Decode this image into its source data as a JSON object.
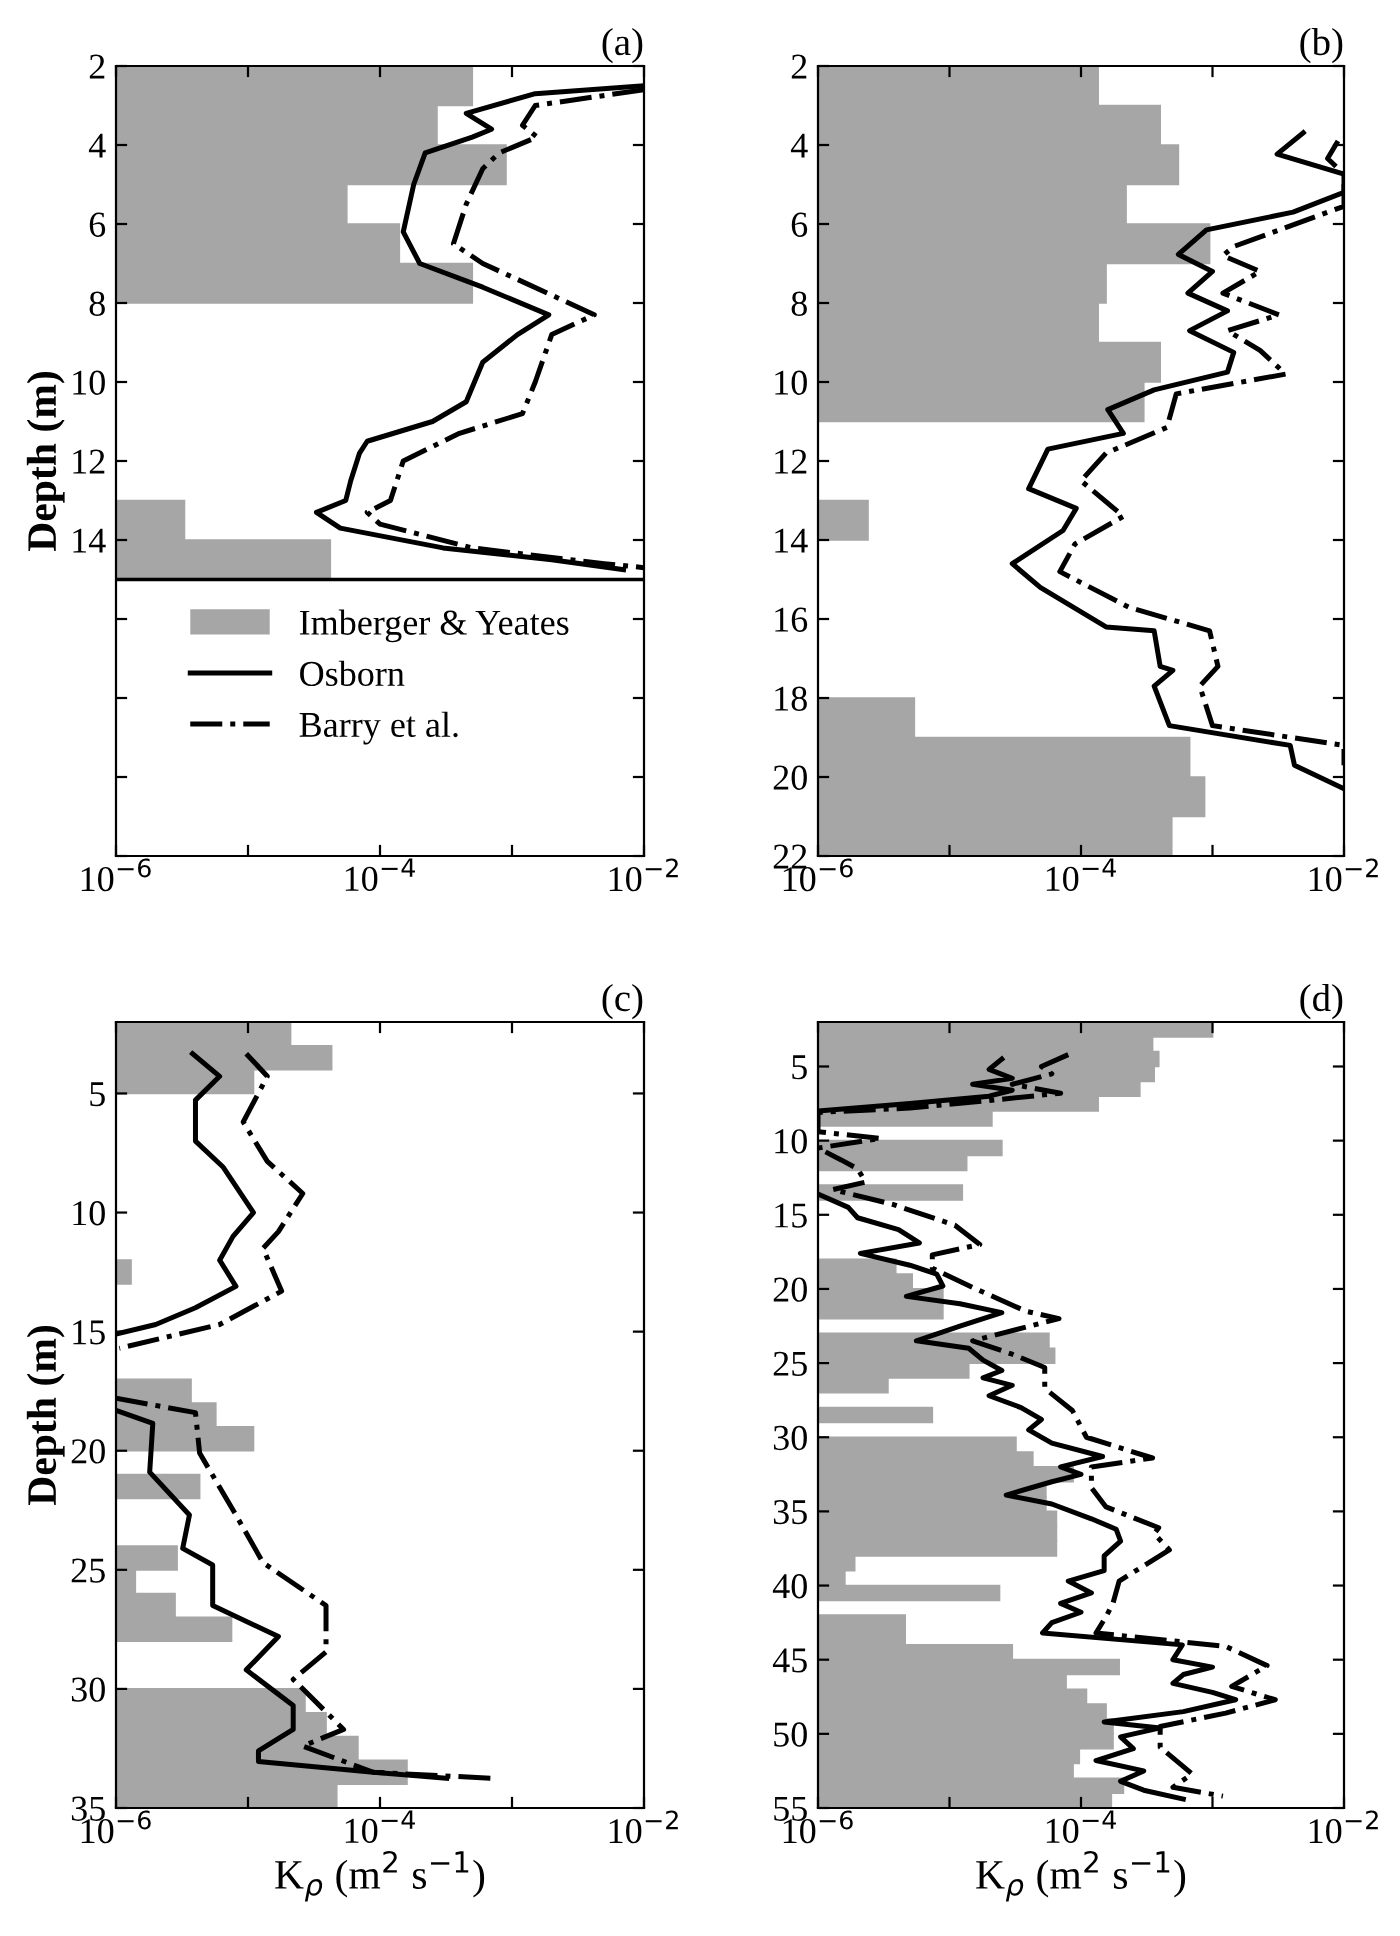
{
  "chart_data": [
    {
      "type": "histogram",
      "orientation": "horizontal",
      "title": "(a)",
      "ylabel": "Depth (m)",
      "log": "x",
      "legend": "bottom",
      "xlim": [
        1e-06,
        0.01
      ],
      "xticks": [
        {
          "value": 1e-06,
          "label": "10$^{−6}$"
        },
        {
          "value": 1e-05,
          "label": null
        },
        {
          "value": 0.0001,
          "label": "10$^{−4}$"
        },
        {
          "value": 0.001,
          "label": null
        },
        {
          "value": 0.01,
          "label": "10$^{−2}$"
        }
      ],
      "ylim": [
        22,
        2
      ],
      "yticks": [
        2,
        4,
        6,
        8,
        10,
        12,
        14,
        {
          "value": 16,
          "label": null
        },
        {
          "value": 18,
          "label": null
        },
        {
          "value": 20,
          "label": null
        },
        {
          "value": 22,
          "label": null
        }
      ],
      "ref_lines": [
        {
          "axis": "y",
          "value": 15,
          "color": "#000000"
        }
      ],
      "series": [
        {
          "name": "Imberger & Yeates",
          "color": "#a6a6a6",
          "bins": [
            2,
            3,
            4,
            5,
            6,
            7,
            8,
            9,
            10,
            11,
            12,
            13,
            14,
            15
          ],
          "values": [
            0.0005,
            0.00027,
            0.0009,
            5.6e-05,
            0.00014,
            0.0005,
            null,
            null,
            null,
            null,
            null,
            3.3e-06,
            4.2e-05
          ]
        },
        {
          "type": "line",
          "name": "Osborn",
          "color": "#000000",
          "line_style": "solid",
          "x": [
            2.5,
            2.7,
            3.2,
            3.6,
            3.8,
            4.2,
            5.0,
            6.2,
            7.0,
            7.6,
            8.3,
            8.8,
            9.5,
            10.5,
            11.0,
            11.5,
            11.8,
            12.5,
            13.0,
            13.3,
            13.7,
            14.2,
            14.5,
            14.75
          ],
          "values": [
            0.01,
            0.0015,
            0.00045,
            0.0007,
            0.0005,
            0.00022,
            0.00018,
            0.00015,
            0.0002,
            0.0006,
            0.0019,
            0.0011,
            0.0006,
            0.00045,
            0.00025,
            8e-05,
            7e-05,
            6e-05,
            5.5e-05,
            3.3e-05,
            5e-05,
            0.0003,
            0.002,
            0.007
          ]
        },
        {
          "type": "line",
          "name": "Barry et al.",
          "color": "#000000",
          "line_style": "dashdot",
          "x": [
            2.6,
            3.0,
            3.5,
            3.8,
            4.2,
            4.6,
            5.5,
            6.5,
            7.0,
            7.8,
            8.3,
            8.8,
            10.0,
            10.8,
            11.3,
            12.0,
            13.0,
            13.3,
            13.6,
            14.2,
            14.6,
            14.7
          ],
          "values": [
            0.01,
            0.0015,
            0.0012,
            0.00155,
            0.0008,
            0.0006,
            0.00045,
            0.00036,
            0.0006,
            0.002,
            0.0042,
            0.002,
            0.0015,
            0.0012,
            0.0004,
            0.00015,
            0.00012,
            8e-05,
            0.0001,
            0.0005,
            0.005,
            0.01
          ]
        }
      ]
    },
    {
      "type": "histogram",
      "orientation": "horizontal",
      "title": "(b)",
      "log": "x",
      "xlim": [
        1e-06,
        0.01
      ],
      "xticks": [
        {
          "value": 1e-06,
          "label": "10$^{−6}$"
        },
        {
          "value": 1e-05,
          "label": null
        },
        {
          "value": 0.0001,
          "label": "10$^{−4}$"
        },
        {
          "value": 0.001,
          "label": null
        },
        {
          "value": 0.01,
          "label": "10$^{−2}$"
        }
      ],
      "ylim": [
        22,
        2
      ],
      "yticks": [
        2,
        4,
        6,
        8,
        10,
        12,
        14,
        16,
        18,
        20,
        22
      ],
      "series": [
        {
          "color": "#a6a6a6",
          "bins": [
            2,
            3,
            4,
            5,
            6,
            7,
            8,
            9,
            10,
            11,
            12,
            13,
            14,
            15,
            16,
            17,
            18,
            19,
            20,
            21,
            22
          ],
          "values": [
            0.000135,
            0.0004,
            0.00055,
            0.00022,
            0.00095,
            0.000155,
            0.000135,
            0.0004,
            0.0003,
            null,
            null,
            2.4e-06,
            null,
            null,
            null,
            null,
            5.4e-06,
            0.00067,
            0.00087,
            0.00049
          ]
        },
        {
          "type": "line",
          "color": "#000000",
          "line_style": "solid",
          "x": [
            3.69,
            4.23,
            4.74,
            5.2,
            5.7,
            6.15,
            6.77,
            7.2,
            7.75,
            8.2,
            8.7,
            9.25,
            9.75,
            10.2,
            10.7,
            11.3,
            11.7,
            12.7,
            13.2,
            13.76,
            14.6,
            15.2,
            16.2,
            16.3,
            17.2,
            17.3,
            17.7,
            18.7,
            19.2,
            19.7,
            20.3
          ],
          "values": [
            0.0049,
            0.0031,
            0.01,
            0.01,
            0.0041,
            0.0009,
            0.00055,
            0.001,
            0.00065,
            0.0013,
            0.00067,
            0.00145,
            0.0013,
            0.00036,
            0.00016,
            0.00021,
            5.6e-05,
            4e-05,
            9.2e-05,
            7.3e-05,
            3e-05,
            4.9e-05,
            0.000155,
            0.00036,
            0.0004,
            0.0005,
            0.00036,
            0.00047,
            0.0039,
            0.0042,
            0.01
          ]
        },
        {
          "type": "line",
          "color": "#000000",
          "line_style": "dashdot",
          "x": [
            3.9,
            4.34,
            4.74,
            5.55,
            6.57,
            6.8,
            7.2,
            7.75,
            8.3,
            8.7,
            9.2,
            9.8,
            10.3,
            11.15,
            11.8,
            12.5,
            13.4,
            14.1,
            14.8,
            15.7,
            16.3,
            17.2,
            17.7,
            18.7,
            19.2,
            19.7
          ],
          "values": [
            0.009,
            0.0075,
            0.01,
            0.01,
            0.00145,
            0.0012,
            0.0023,
            0.0012,
            0.0032,
            0.0013,
            0.0023,
            0.0036,
            0.00053,
            0.00045,
            0.000155,
            0.0001,
            0.00021,
            9e-05,
            6.9e-05,
            0.00023,
            0.00095,
            0.0011,
            0.0008,
            0.001,
            0.01,
            0.01
          ]
        }
      ]
    },
    {
      "type": "histogram",
      "orientation": "horizontal",
      "title": "(c)",
      "ylabel": "Depth (m)",
      "xlabel": "K$_{ρ}$ (m$^{2}$ s$^{−1}$)",
      "log": "x",
      "xlim": [
        1e-06,
        0.01
      ],
      "xticks": [
        {
          "value": 1e-06,
          "label": "10$^{−6}$"
        },
        {
          "value": 1e-05,
          "label": null
        },
        {
          "value": 0.0001,
          "label": "10$^{−4}$"
        },
        {
          "value": 0.001,
          "label": null
        },
        {
          "value": 0.01,
          "label": "10$^{−2}$"
        }
      ],
      "ylim": [
        35,
        2
      ],
      "yticks": [
        5,
        10,
        15,
        20,
        25,
        30,
        35
      ],
      "series": [
        {
          "color": "#a6a6a6",
          "bins": [
            2,
            3,
            4,
            5,
            6,
            7,
            8,
            9,
            10,
            11,
            12,
            13,
            14,
            15,
            16,
            17,
            18,
            19,
            20,
            21,
            22,
            23,
            24,
            25,
            26,
            27,
            28,
            29,
            30,
            31,
            32,
            33,
            34,
            35
          ],
          "values": [
            2.1e-05,
            4.3e-05,
            1.1e-05,
            null,
            null,
            null,
            null,
            null,
            null,
            null,
            1.3e-06,
            null,
            null,
            null,
            null,
            3.7e-06,
            5.7e-06,
            1.1e-05,
            null,
            4.3e-06,
            null,
            null,
            2.9e-06,
            1.4e-06,
            2.8e-06,
            7.5e-06,
            null,
            null,
            2.7e-05,
            3.9e-05,
            6.8e-05,
            0.00016,
            4.7e-05
          ]
        },
        {
          "type": "line",
          "color": "#000000",
          "line_style": "solid",
          "x": [
            3.33,
            4.28,
            5.28,
            7.0,
            8.1,
            10.0,
            11.0,
            12.0,
            13.1,
            14.0,
            14.7,
            15.1,
            16.5,
            18.3,
            18.85,
            20.9,
            22.7,
            24.1,
            24.8,
            26.5,
            27.8,
            29.2,
            30.7,
            31.7,
            32.6,
            33.05,
            33.5,
            33.75
          ],
          "values": [
            3.8e-06,
            6.1e-06,
            4e-06,
            4e-06,
            6.5e-06,
            1.1e-05,
            7.7e-06,
            6.1e-06,
            8.1e-06,
            4e-06,
            2e-06,
            1e-06,
            null,
            1e-06,
            1.9e-06,
            1.8e-06,
            3.6e-06,
            3.2e-06,
            5.4e-06,
            5.4e-06,
            1.7e-05,
            9.7e-06,
            2.2e-05,
            2.2e-05,
            1.2e-05,
            1.2e-05,
            8.9e-05,
            0.00032
          ]
        },
        {
          "type": "line",
          "color": "#000000",
          "line_style": "dashdot",
          "x": [
            3.33,
            4.28,
            6.2,
            7.85,
            9.2,
            10.8,
            11.5,
            13.3,
            14.7,
            15.7,
            16.8,
            17.8,
            18.4,
            20.1,
            22.7,
            24.7,
            26.5,
            28.45,
            29.6,
            31.7,
            32.4,
            33.5,
            33.75
          ],
          "values": [
            9.7e-06,
            1.4e-05,
            9.2e-06,
            1.4e-05,
            2.6e-05,
            1.7e-05,
            1.3e-05,
            1.8e-05,
            6.1e-06,
            1.06e-06,
            null,
            1e-06,
            4e-06,
            4.3e-06,
            8.1e-06,
            1.3e-05,
            3.9e-05,
            3.9e-05,
            2.2e-05,
            5.3e-05,
            2.6e-05,
            8.9e-05,
            0.00069
          ]
        }
      ]
    },
    {
      "type": "histogram",
      "orientation": "horizontal",
      "title": "(d)",
      "xlabel": "K$_{ρ}$ (m$^{2}$ s$^{−1}$)",
      "log": "x",
      "xlim": [
        1e-06,
        0.01
      ],
      "xticks": [
        {
          "value": 1e-06,
          "label": "10$^{−6}$"
        },
        {
          "value": 1e-05,
          "label": null
        },
        {
          "value": 0.0001,
          "label": "10$^{−4}$"
        },
        {
          "value": 0.001,
          "label": null
        },
        {
          "value": 0.01,
          "label": "10$^{−2}$"
        }
      ],
      "ylim": [
        55,
        2
      ],
      "yticks": [
        5,
        10,
        15,
        20,
        25,
        30,
        35,
        40,
        45,
        50,
        55
      ],
      "series": [
        {
          "color": "#a6a6a6",
          "bins": [
            2,
            3,
            4,
            5,
            6,
            7,
            8,
            9,
            10,
            11,
            12,
            13,
            14,
            15,
            16,
            17,
            18,
            19,
            20,
            21,
            22,
            23,
            24,
            25,
            26,
            27,
            28,
            29,
            30,
            31,
            32,
            33,
            34,
            35,
            36,
            37,
            38,
            39,
            40,
            41,
            42,
            43,
            44,
            45,
            46,
            47,
            48,
            49,
            50,
            51,
            52,
            53,
            54,
            55
          ],
          "values": [
            0.001,
            0.00035,
            0.00039,
            0.00036,
            0.00028,
            0.000135,
            2.1e-05,
            null,
            2.5e-05,
            1.35e-05,
            null,
            1.25e-05,
            null,
            null,
            null,
            null,
            3.9e-06,
            5.2e-06,
            8.9e-06,
            8.9e-06,
            null,
            5.7e-05,
            6.3e-05,
            1.4e-05,
            3.4e-06,
            null,
            7.4e-06,
            null,
            3.2e-05,
            4.3e-05,
            8.7e-05,
            5.4e-05,
            5.4e-05,
            6.5e-05,
            6.5e-05,
            6.5e-05,
            1.9e-06,
            1.6e-06,
            2.4e-05,
            null,
            4.6e-06,
            4.6e-06,
            3e-05,
            0.000195,
            7.7e-05,
            0.00011,
            0.000155,
            0.000175,
            0.000175,
            9.7e-05,
            8.7e-05,
            0.00021,
            0.00017
          ]
        },
        {
          "type": "line",
          "color": "#000000",
          "line_style": "solid",
          "x": [
            4.5,
            5.2,
            5.8,
            6.2,
            6.6,
            7.0,
            7.5,
            8.0,
            10.8,
            13.6,
            14.5,
            15.2,
            16.0,
            16.9,
            17.6,
            18.4,
            19.0,
            19.8,
            20.5,
            21.0,
            21.6,
            22.5,
            23.5,
            24.0,
            24.8,
            25.5,
            26.0,
            26.5,
            27.2,
            28.0,
            28.8,
            29.5,
            30.4,
            31.3,
            32.0,
            32.5,
            33.0,
            33.9,
            34.5,
            35.5,
            36.2,
            37.0,
            38.0,
            39.0,
            39.7,
            40.5,
            41.2,
            41.8,
            42.5,
            43.2,
            44.0,
            45.0,
            45.5,
            46.0,
            46.6,
            47.2,
            47.7,
            48.5,
            49.2,
            49.6,
            50.2,
            51.0,
            51.8,
            52.5,
            53.2,
            53.8,
            54.4
          ],
          "values": [
            2.5e-05,
            2e-05,
            3e-05,
            1.5e-05,
            3e-05,
            2e-05,
            5e-06,
            1e-06,
            null,
            1e-06,
            1.7e-06,
            2e-06,
            4.1e-06,
            5.9e-06,
            2.1e-06,
            5e-06,
            8e-06,
            8.9e-06,
            4.7e-06,
            1.2e-05,
            2.5e-05,
            1.2e-05,
            5.6e-06,
            1.4e-05,
            1.8e-05,
            2.5e-05,
            1.8e-05,
            3e-05,
            2e-05,
            3.5e-05,
            5e-05,
            4e-05,
            6e-05,
            0.000146,
            7e-05,
            0.0001,
            6e-05,
            2.7e-05,
            6e-05,
            0.00012,
            0.000185,
            0.0002,
            0.00015,
            0.00015,
            8e-05,
            0.00012,
            7e-05,
            0.0001,
            6e-05,
            5.1e-05,
            0.00059,
            0.0005,
            0.001,
            0.0006,
            0.0005,
            0.001,
            0.0015,
            0.0006,
            0.00015,
            0.0004,
            0.0002,
            0.00025,
            0.00013,
            0.0003,
            0.0002,
            0.0003,
            0.0006
          ]
        },
        {
          "type": "line",
          "color": "#000000",
          "line_style": "dashdot",
          "x": [
            4.2,
            5.0,
            5.5,
            6.2,
            6.8,
            7.3,
            7.8,
            8.1,
            9.4,
            9.85,
            10.5,
            11.3,
            11.9,
            12.8,
            13.3,
            14.3,
            15.7,
            17.0,
            17.7,
            18.6,
            19.9,
            21.5,
            22.0,
            23.5,
            24.4,
            25.3,
            26.7,
            28.2,
            30.0,
            31.4,
            32.0,
            33.4,
            34.7,
            36.1,
            36.5,
            37.6,
            39.7,
            41.2,
            42.1,
            43.2,
            44.1,
            45.4,
            46.8,
            47.7,
            48.6,
            49.5,
            50.9,
            52.7,
            53.6,
            54.2
          ],
          "values": [
            8e-05,
            5e-05,
            6e-05,
            3e-05,
            7e-05,
            2e-05,
            5e-06,
            1e-06,
            1e-06,
            3e-06,
            1e-06,
            1.5e-06,
            2e-06,
            2.3e-06,
            1.3e-06,
            3.7e-06,
            1.1e-05,
            1.7e-05,
            7.4e-06,
            7.4e-06,
            1.5e-05,
            3.8e-05,
            6.8e-05,
            1.5e-05,
            3e-05,
            5.3e-05,
            5.3e-05,
            8.6e-05,
            0.00011,
            0.00035,
            0.00012,
            0.00012,
            0.000155,
            0.00039,
            0.00036,
            0.00047,
            0.000195,
            0.000175,
            0.000155,
            0.00013,
            0.00126,
            0.0026,
            0.0014,
            0.003,
            0.00126,
            0.0004,
            0.0004,
            0.0007,
            0.0005,
            0.0012
          ]
        }
      ]
    }
  ]
}
